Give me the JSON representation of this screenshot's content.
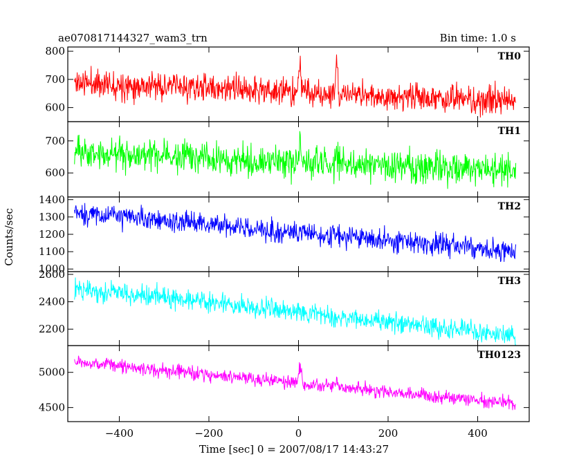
{
  "header": {
    "title": "ae070817144327_wam3_trn",
    "bin_time": "Bin time: 1.0 s"
  },
  "chart_data": {
    "type": "line",
    "xlabel": "Time [sec] 0 = 2007/08/17 14:43:27",
    "ylabel": "Counts/sec",
    "xlim": [
      -515,
      515
    ],
    "x_ticks": [
      -400,
      -200,
      0,
      200,
      400
    ],
    "x_tick_labels": [
      "−400",
      "−200",
      "0",
      "200",
      "400"
    ],
    "time_range": [
      -500,
      485
    ],
    "grid": false,
    "panels": [
      {
        "name": "TH0",
        "color": "#ff0000",
        "ylim": [
          550,
          815
        ],
        "y_ticks": [
          600,
          700,
          800
        ],
        "y_tick_labels": [
          "600",
          "700",
          "800"
        ],
        "trend": [
          [
            -500,
            690
          ],
          [
            485,
            620
          ]
        ],
        "noise": 35,
        "seed": 11,
        "bursts": [
          [
            3,
            6,
            110
          ],
          [
            85,
            3,
            120
          ]
        ]
      },
      {
        "name": "TH1",
        "color": "#00ff00",
        "ylim": [
          525,
          760
        ],
        "y_ticks": [
          600,
          700
        ],
        "y_tick_labels": [
          "600",
          "700"
        ],
        "trend": [
          [
            -500,
            665
          ],
          [
            485,
            605
          ]
        ],
        "noise": 35,
        "seed": 23,
        "bursts": [
          [
            3,
            6,
            60
          ],
          [
            85,
            3,
            50
          ]
        ]
      },
      {
        "name": "TH2",
        "color": "#0000ff",
        "ylim": [
          985,
          1415
        ],
        "y_ticks": [
          1000,
          1100,
          1200,
          1300,
          1400
        ],
        "y_tick_labels": [
          "1000",
          "1100",
          "1200",
          "1300",
          "1400"
        ],
        "trend": [
          [
            -500,
            1325
          ],
          [
            485,
            1100
          ]
        ],
        "noise": 45,
        "seed": 37,
        "bursts": []
      },
      {
        "name": "TH3",
        "color": "#00ffff",
        "ylim": [
          2080,
          2620
        ],
        "y_ticks": [
          2200,
          2400,
          2600
        ],
        "y_tick_labels": [
          "2200",
          "2400",
          "2600"
        ],
        "trend": [
          [
            -500,
            2500
          ],
          [
            485,
            2150
          ]
        ],
        "noise": 55,
        "seed": 51,
        "bursts": [
          [
            -215,
            4,
            80
          ]
        ]
      },
      {
        "name": "TH0123",
        "color": "#ff00ff",
        "ylim": [
          4300,
          5380
        ],
        "y_ticks": [
          4500,
          5000
        ],
        "y_tick_labels": [
          "4500",
          "5000"
        ],
        "trend": [
          [
            -500,
            5150
          ],
          [
            485,
            4550
          ]
        ],
        "noise": 70,
        "seed": 67,
        "bursts": [
          [
            3,
            6,
            200
          ],
          [
            85,
            3,
            150
          ]
        ]
      }
    ]
  }
}
